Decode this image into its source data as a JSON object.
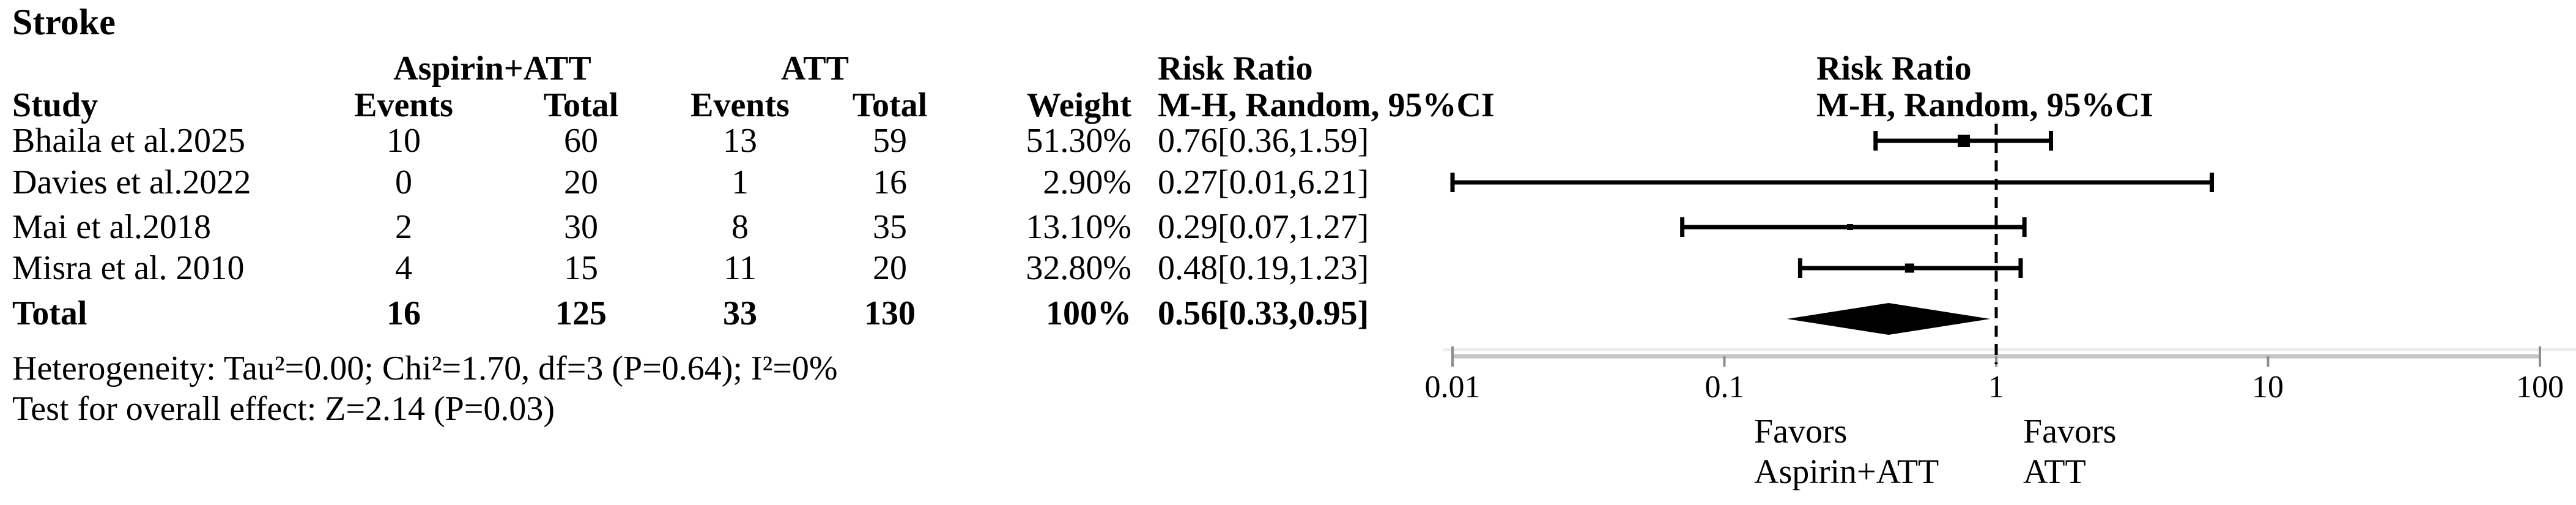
{
  "figure": {
    "title": "Stroke",
    "group1_header": "Aspirin+ATT",
    "group2_header": "ATT",
    "effect_header_line1": "Risk Ratio",
    "effect_header_line2": "M-H, Random, 95%CI",
    "plot_header_line1": "Risk Ratio",
    "plot_header_line2": "M-H, Random, 95%CI",
    "columns": {
      "study": "Study",
      "events1": "Events",
      "total1": "Total",
      "events2": "Events",
      "total2": "Total",
      "weight": "Weight"
    },
    "rows": [
      {
        "study": "Bhaila et al.2025",
        "events1": "10",
        "total1": "60",
        "events2": "13",
        "total2": "59",
        "weight": "51.30%",
        "rr_ci": "0.76[0.36,1.59]"
      },
      {
        "study": "Davies et al.2022",
        "events1": "0",
        "total1": "20",
        "events2": "1",
        "total2": "16",
        "weight": "2.90%",
        "rr_ci": "0.27[0.01,6.21]"
      },
      {
        "study": "Mai et al.2018",
        "events1": "2",
        "total1": "30",
        "events2": "8",
        "total2": "35",
        "weight": "13.10%",
        "rr_ci": "0.29[0.07,1.27]"
      },
      {
        "study": "Misra et al. 2010",
        "events1": "4",
        "total1": "15",
        "events2": "11",
        "total2": "20",
        "weight": "32.80%",
        "rr_ci": "0.48[0.19,1.23]"
      }
    ],
    "total_row": {
      "label": "Total",
      "events1": "16",
      "total1": "125",
      "events2": "33",
      "total2": "130",
      "weight": "100%",
      "rr_ci": "0.56[0.33,0.95]"
    },
    "heterogeneity": "Heterogeneity: Tau²=0.00; Chi²=1.70, df=3 (P=0.64); I²=0%",
    "overall_effect": "Test for overall effect: Z=2.14 (P=0.03)",
    "favors_left": [
      "Favors",
      "Aspirin+ATT"
    ],
    "favors_right": [
      "Favors",
      "ATT"
    ]
  },
  "chart_data": {
    "type": "forest",
    "title": "Stroke",
    "effect_measure": "Risk Ratio",
    "model": "M-H, Random, 95%CI",
    "x_scale": "log10",
    "x_range": [
      0.01,
      100
    ],
    "x_ticks": [
      "0.01",
      "0.1",
      "1",
      "10",
      "100"
    ],
    "null_line": 1,
    "grid": false,
    "legend_position": "none",
    "studies": [
      {
        "label": "Bhaila et al.2025",
        "rr": 0.76,
        "ci_low": 0.36,
        "ci_high": 1.59,
        "weight_pct": 51.3
      },
      {
        "label": "Davies et al.2022",
        "rr": 0.27,
        "ci_low": 0.01,
        "ci_high": 6.21,
        "weight_pct": 2.9
      },
      {
        "label": "Mai et al.2018",
        "rr": 0.29,
        "ci_low": 0.07,
        "ci_high": 1.27,
        "weight_pct": 13.1
      },
      {
        "label": "Misra et al. 2010",
        "rr": 0.48,
        "ci_low": 0.19,
        "ci_high": 1.23,
        "weight_pct": 32.8
      }
    ],
    "total": {
      "label": "Total",
      "rr": 0.56,
      "ci_low": 0.33,
      "ci_high": 0.95,
      "weight_pct": 100
    },
    "diamond_drawn_extent": [
      0.17,
      0.95
    ],
    "favors_left_label": "Favors Aspirin+ATT",
    "favors_right_label": "Favors ATT"
  }
}
